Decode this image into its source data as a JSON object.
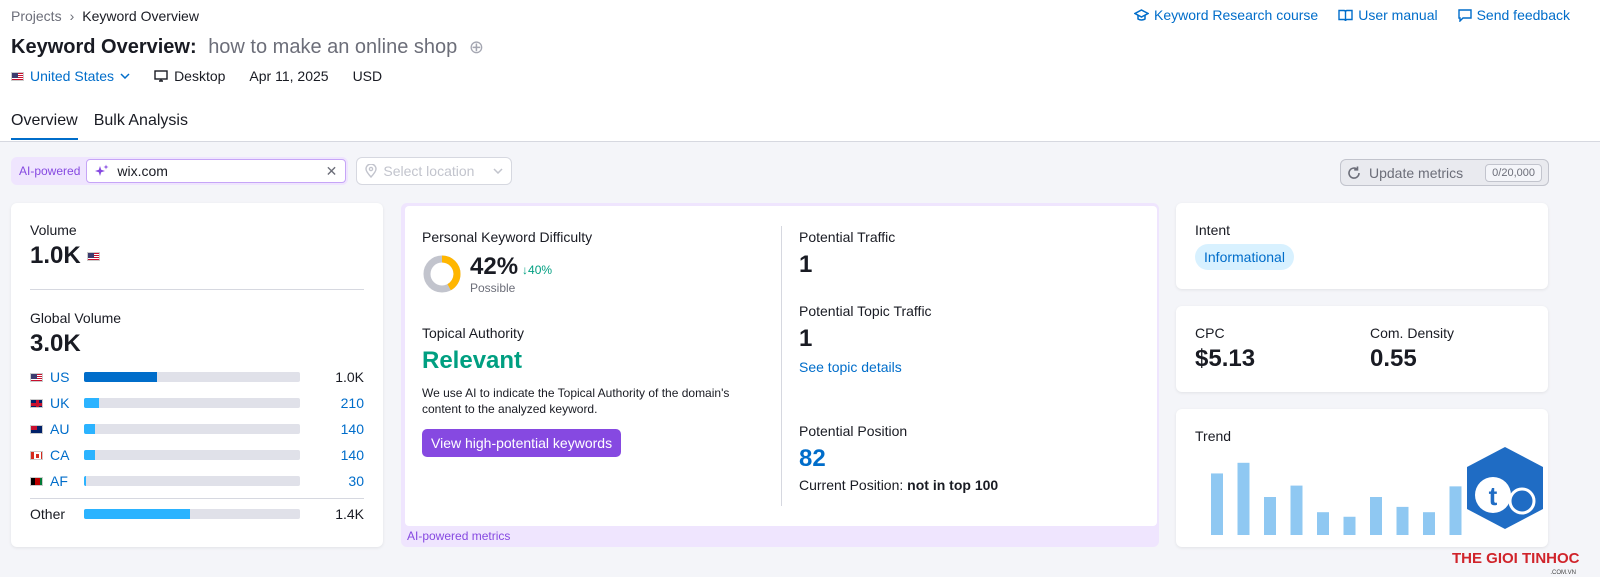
{
  "breadcrumb": {
    "root": "Projects",
    "current": "Keyword Overview"
  },
  "top_links": {
    "course": "Keyword Research course",
    "manual": "User manual",
    "feedback": "Send feedback"
  },
  "header": {
    "title": "Keyword Overview:",
    "keyword": "how to make an online shop"
  },
  "meta": {
    "country": "United States",
    "device": "Desktop",
    "date": "Apr 11, 2025",
    "currency": "USD"
  },
  "tabs": [
    "Overview",
    "Bulk Analysis"
  ],
  "filters": {
    "ai_label": "AI-powered",
    "domain": "wix.com",
    "location_placeholder": "Select location"
  },
  "update": {
    "label": "Update metrics",
    "count": "0/20,000"
  },
  "volume": {
    "label": "Volume",
    "value": "1.0K",
    "global_label": "Global Volume",
    "global_value": "3.0K",
    "countries": [
      {
        "code": "US",
        "value": "1.0K",
        "share": 0.34
      },
      {
        "code": "UK",
        "value": "210",
        "share": 0.07
      },
      {
        "code": "AU",
        "value": "140",
        "share": 0.05
      },
      {
        "code": "CA",
        "value": "140",
        "share": 0.05
      },
      {
        "code": "AF",
        "value": "30",
        "share": 0.01
      }
    ],
    "other": {
      "label": "Other",
      "value": "1.4K",
      "share": 0.49
    }
  },
  "ai_metrics": {
    "pkd_label": "Personal Keyword Difficulty",
    "pkd_value": "42%",
    "pkd_delta": "↓40%",
    "pkd_status": "Possible",
    "pkd_fraction": 0.42,
    "topical_label": "Topical Authority",
    "topical_value": "Relevant",
    "topical_desc": "We use AI to indicate the Topical Authority of the domain's content to the analyzed keyword.",
    "button": "View high-potential keywords",
    "traffic_label": "Potential Traffic",
    "traffic_value": "1",
    "topic_traffic_label": "Potential Topic Traffic",
    "topic_traffic_value": "1",
    "topic_link": "See topic details",
    "position_label": "Potential Position",
    "position_value": "82",
    "current_label": "Current Position:",
    "current_value": "not in top 100",
    "footer": "AI-powered metrics"
  },
  "intent": {
    "label": "Intent",
    "value": "Informational"
  },
  "cpc": {
    "label": "CPC",
    "value": "$5.13",
    "density_label": "Com. Density",
    "density_value": "0.55"
  },
  "trend": {
    "label": "Trend",
    "values": [
      0.81,
      0.95,
      0.5,
      0.65,
      0.3,
      0.24,
      0.5,
      0.37,
      0.3,
      0.64
    ]
  },
  "watermark": {
    "line1": "THE GIOI TINHOC",
    "line2": ".COM.VN"
  },
  "colors": {
    "accent": "#006dca",
    "purple": "#8649e1",
    "green": "#009f81",
    "bar": "#2bb3ff"
  }
}
